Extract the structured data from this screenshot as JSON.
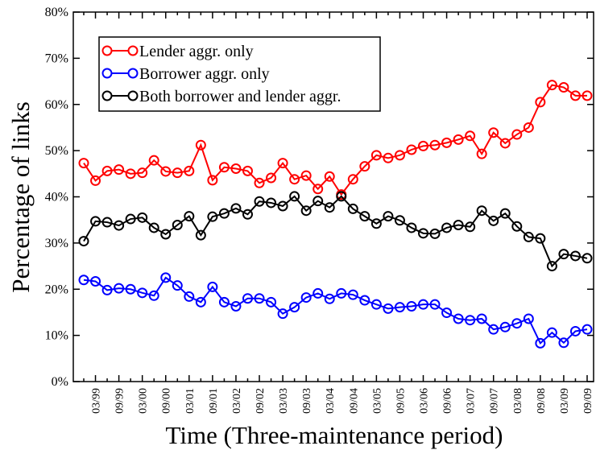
{
  "chart_data": {
    "type": "line",
    "y_label": "Percentage of links",
    "x_label": "Time (Three-maintenance period)",
    "categories": [
      null,
      "03/99",
      null,
      "09/99",
      null,
      "03/00",
      null,
      "09/00",
      null,
      "03/01",
      null,
      "09/01",
      null,
      "03/02",
      null,
      "09/02",
      null,
      "03/03",
      null,
      "09/03",
      null,
      "03/04",
      null,
      "09/04",
      null,
      "03/05",
      null,
      "09/05",
      null,
      "03/06",
      null,
      "09/06",
      null,
      "03/07",
      null,
      "09/07",
      null,
      "03/08",
      null,
      "09/08",
      null,
      "03/09",
      null,
      "09/09"
    ],
    "series": [
      {
        "name": "Lender aggr. only",
        "color": "#ff0000",
        "values": [
          47.3,
          43.5,
          45.6,
          45.9,
          45.0,
          45.2,
          47.9,
          45.5,
          45.2,
          45.6,
          51.2,
          43.6,
          46.4,
          46.1,
          45.6,
          43.0,
          44.1,
          47.3,
          43.8,
          44.6,
          41.7,
          44.4,
          40.5,
          43.8,
          46.6,
          49.0,
          48.4,
          49.0,
          50.2,
          51.0,
          51.2,
          51.7,
          52.4,
          53.2,
          49.3,
          53.9,
          51.6,
          53.5,
          55.0,
          60.5,
          64.2,
          63.7,
          61.9,
          61.9
        ]
      },
      {
        "name": "Borrower aggr. only",
        "color": "#0000ff",
        "values": [
          22.0,
          21.7,
          19.8,
          20.2,
          20.0,
          19.2,
          18.6,
          22.5,
          20.8,
          18.4,
          17.2,
          20.5,
          17.2,
          16.3,
          18.0,
          18.0,
          17.2,
          14.7,
          16.1,
          18.2,
          19.1,
          17.9,
          19.1,
          18.8,
          17.6,
          16.7,
          15.8,
          16.1,
          16.3,
          16.7,
          16.7,
          14.9,
          13.6,
          13.3,
          13.6,
          11.3,
          11.8,
          12.6,
          13.6,
          8.3,
          10.6,
          8.4,
          10.9,
          11.3
        ]
      },
      {
        "name": "Both borrower and lender aggr.",
        "color": "#000000",
        "values": [
          30.4,
          34.7,
          34.5,
          33.8,
          35.2,
          35.5,
          33.3,
          31.9,
          33.9,
          35.8,
          31.7,
          35.7,
          36.4,
          37.5,
          36.2,
          39.0,
          38.7,
          38.0,
          40.1,
          37.0,
          39.1,
          37.7,
          40.1,
          37.4,
          35.8,
          34.2,
          35.8,
          34.9,
          33.3,
          32.1,
          32.0,
          33.3,
          33.9,
          33.5,
          37.0,
          34.8,
          36.4,
          33.6,
          31.3,
          31.0,
          25.0,
          27.6,
          27.2,
          26.7
        ]
      }
    ],
    "ylim": [
      0,
      80
    ],
    "yticks": [
      {
        "value": 0,
        "label": "0%"
      },
      {
        "value": 10,
        "label": "10%"
      },
      {
        "value": 20,
        "label": "20%"
      },
      {
        "value": 30,
        "label": "30%"
      },
      {
        "value": 40,
        "label": "40%"
      },
      {
        "value": 50,
        "label": "50%"
      },
      {
        "value": 60,
        "label": "60%"
      },
      {
        "value": 70,
        "label": "70%"
      },
      {
        "value": 80,
        "label": "80%"
      }
    ],
    "grid": false,
    "legend": "upper-left"
  }
}
